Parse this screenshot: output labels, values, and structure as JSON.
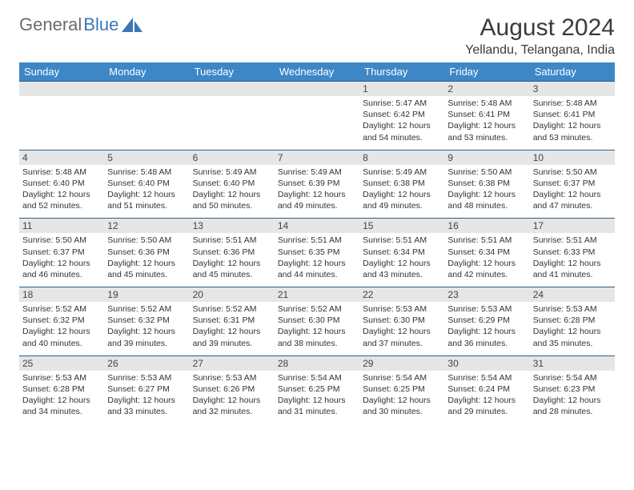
{
  "logo": {
    "left": "General",
    "right": "Blue"
  },
  "title": "August 2024",
  "location": "Yellandu, Telangana, India",
  "colors": {
    "header_bg": "#3d87c7",
    "header_fg": "#ffffff",
    "daynum_bg": "#e6e6e6",
    "rule": "#2b5f8c",
    "logo_gray": "#6c6c6c",
    "logo_blue": "#3a78b5",
    "text": "#333333"
  },
  "weekdays": [
    "Sunday",
    "Monday",
    "Tuesday",
    "Wednesday",
    "Thursday",
    "Friday",
    "Saturday"
  ],
  "weeks": [
    [
      null,
      null,
      null,
      null,
      {
        "n": "1",
        "sr": "5:47 AM",
        "ss": "6:42 PM",
        "dl": "12 hours and 54 minutes."
      },
      {
        "n": "2",
        "sr": "5:48 AM",
        "ss": "6:41 PM",
        "dl": "12 hours and 53 minutes."
      },
      {
        "n": "3",
        "sr": "5:48 AM",
        "ss": "6:41 PM",
        "dl": "12 hours and 53 minutes."
      }
    ],
    [
      {
        "n": "4",
        "sr": "5:48 AM",
        "ss": "6:40 PM",
        "dl": "12 hours and 52 minutes."
      },
      {
        "n": "5",
        "sr": "5:48 AM",
        "ss": "6:40 PM",
        "dl": "12 hours and 51 minutes."
      },
      {
        "n": "6",
        "sr": "5:49 AM",
        "ss": "6:40 PM",
        "dl": "12 hours and 50 minutes."
      },
      {
        "n": "7",
        "sr": "5:49 AM",
        "ss": "6:39 PM",
        "dl": "12 hours and 49 minutes."
      },
      {
        "n": "8",
        "sr": "5:49 AM",
        "ss": "6:38 PM",
        "dl": "12 hours and 49 minutes."
      },
      {
        "n": "9",
        "sr": "5:50 AM",
        "ss": "6:38 PM",
        "dl": "12 hours and 48 minutes."
      },
      {
        "n": "10",
        "sr": "5:50 AM",
        "ss": "6:37 PM",
        "dl": "12 hours and 47 minutes."
      }
    ],
    [
      {
        "n": "11",
        "sr": "5:50 AM",
        "ss": "6:37 PM",
        "dl": "12 hours and 46 minutes."
      },
      {
        "n": "12",
        "sr": "5:50 AM",
        "ss": "6:36 PM",
        "dl": "12 hours and 45 minutes."
      },
      {
        "n": "13",
        "sr": "5:51 AM",
        "ss": "6:36 PM",
        "dl": "12 hours and 45 minutes."
      },
      {
        "n": "14",
        "sr": "5:51 AM",
        "ss": "6:35 PM",
        "dl": "12 hours and 44 minutes."
      },
      {
        "n": "15",
        "sr": "5:51 AM",
        "ss": "6:34 PM",
        "dl": "12 hours and 43 minutes."
      },
      {
        "n": "16",
        "sr": "5:51 AM",
        "ss": "6:34 PM",
        "dl": "12 hours and 42 minutes."
      },
      {
        "n": "17",
        "sr": "5:51 AM",
        "ss": "6:33 PM",
        "dl": "12 hours and 41 minutes."
      }
    ],
    [
      {
        "n": "18",
        "sr": "5:52 AM",
        "ss": "6:32 PM",
        "dl": "12 hours and 40 minutes."
      },
      {
        "n": "19",
        "sr": "5:52 AM",
        "ss": "6:32 PM",
        "dl": "12 hours and 39 minutes."
      },
      {
        "n": "20",
        "sr": "5:52 AM",
        "ss": "6:31 PM",
        "dl": "12 hours and 39 minutes."
      },
      {
        "n": "21",
        "sr": "5:52 AM",
        "ss": "6:30 PM",
        "dl": "12 hours and 38 minutes."
      },
      {
        "n": "22",
        "sr": "5:53 AM",
        "ss": "6:30 PM",
        "dl": "12 hours and 37 minutes."
      },
      {
        "n": "23",
        "sr": "5:53 AM",
        "ss": "6:29 PM",
        "dl": "12 hours and 36 minutes."
      },
      {
        "n": "24",
        "sr": "5:53 AM",
        "ss": "6:28 PM",
        "dl": "12 hours and 35 minutes."
      }
    ],
    [
      {
        "n": "25",
        "sr": "5:53 AM",
        "ss": "6:28 PM",
        "dl": "12 hours and 34 minutes."
      },
      {
        "n": "26",
        "sr": "5:53 AM",
        "ss": "6:27 PM",
        "dl": "12 hours and 33 minutes."
      },
      {
        "n": "27",
        "sr": "5:53 AM",
        "ss": "6:26 PM",
        "dl": "12 hours and 32 minutes."
      },
      {
        "n": "28",
        "sr": "5:54 AM",
        "ss": "6:25 PM",
        "dl": "12 hours and 31 minutes."
      },
      {
        "n": "29",
        "sr": "5:54 AM",
        "ss": "6:25 PM",
        "dl": "12 hours and 30 minutes."
      },
      {
        "n": "30",
        "sr": "5:54 AM",
        "ss": "6:24 PM",
        "dl": "12 hours and 29 minutes."
      },
      {
        "n": "31",
        "sr": "5:54 AM",
        "ss": "6:23 PM",
        "dl": "12 hours and 28 minutes."
      }
    ]
  ],
  "labels": {
    "sunrise": "Sunrise:",
    "sunset": "Sunset:",
    "daylight": "Daylight:"
  }
}
